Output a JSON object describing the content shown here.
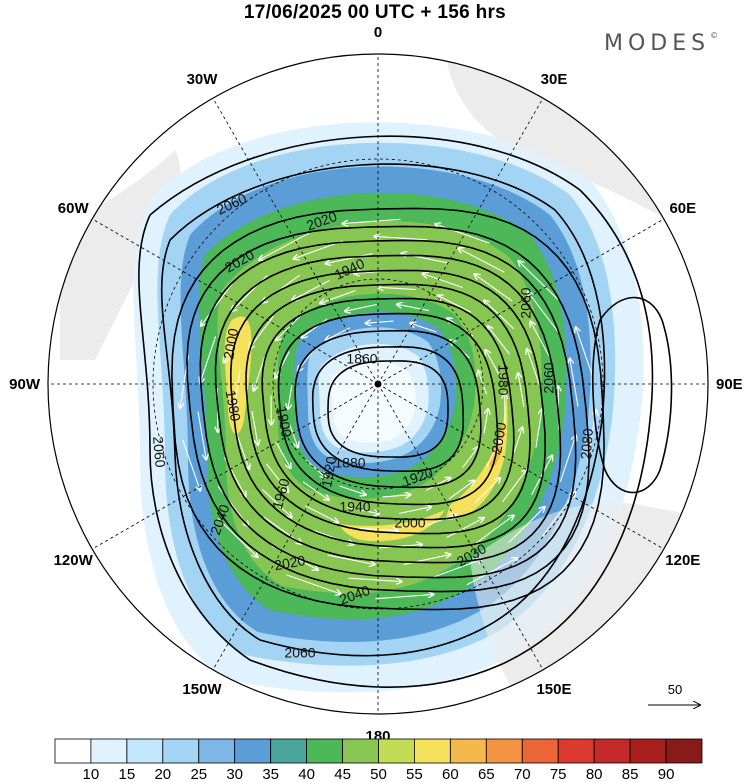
{
  "title": "17/06/2025  00 UTC  + 156 hrs",
  "logo": {
    "text": "MODES",
    "mark": "©"
  },
  "map": {
    "projection": "polar-stereographic-south",
    "longitude_labels": [
      {
        "text": "0",
        "deg": 0
      },
      {
        "text": "30E",
        "deg": 30
      },
      {
        "text": "60E",
        "deg": 60
      },
      {
        "text": "90E",
        "deg": 90
      },
      {
        "text": "120E",
        "deg": 120
      },
      {
        "text": "150E",
        "deg": 150
      },
      {
        "text": "180",
        "deg": 180
      },
      {
        "text": "150W",
        "deg": 210
      },
      {
        "text": "120W",
        "deg": 240
      },
      {
        "text": "90W",
        "deg": 270
      },
      {
        "text": "60W",
        "deg": 300
      },
      {
        "text": "30W",
        "deg": 330
      }
    ],
    "contour_labels": [
      "1860",
      "1880",
      "1900",
      "1920",
      "1920",
      "1940",
      "1940",
      "1960",
      "1980",
      "1980",
      "2000",
      "2000",
      "2000",
      "2020",
      "2020",
      "2020",
      "2030",
      "2040",
      "2040",
      "2060",
      "2060",
      "2060",
      "2060",
      "2060",
      "2080"
    ],
    "reference_vector": {
      "label": "50"
    }
  },
  "colorbar": {
    "ticks": [
      "10",
      "15",
      "20",
      "25",
      "30",
      "35",
      "40",
      "45",
      "50",
      "55",
      "60",
      "65",
      "70",
      "75",
      "80",
      "85",
      "90"
    ],
    "colors": [
      "#ffffff",
      "#dff2fd",
      "#c2e6fb",
      "#a3d4f4",
      "#7db7e6",
      "#5b9dd7",
      "#4aa69a",
      "#4cb857",
      "#88c653",
      "#c3dc55",
      "#f6e15c",
      "#f5b84b",
      "#f29442",
      "#ec6536",
      "#dc3a2e",
      "#c42a2a",
      "#a8201e",
      "#8a1a18"
    ]
  }
}
